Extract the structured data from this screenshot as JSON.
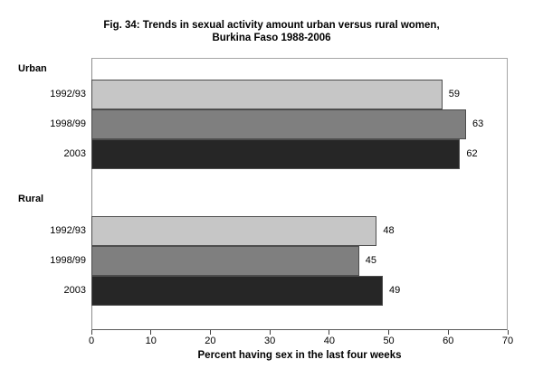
{
  "chart_data": {
    "type": "bar",
    "orientation": "horizontal",
    "title": "Fig. 34: Trends in sexual activity amount urban versus rural women, Burkina Faso 1988-2006",
    "title_lines": [
      "Fig. 34:  Trends in sexual activity amount urban versus rural women,",
      "Burkina Faso 1988-2006"
    ],
    "xlabel": "Percent having sex in the last four weeks",
    "xlim": [
      0,
      70
    ],
    "xticks": [
      0,
      10,
      20,
      30,
      40,
      50,
      60,
      70
    ],
    "grid": false,
    "legend": "none",
    "series_colors": [
      "#c6c6c6",
      "#7f7f7f",
      "#262626"
    ],
    "bar_border_color": "#4d4d4d",
    "groups": [
      {
        "label": "Urban",
        "bars": [
          {
            "category": "1992/93",
            "value": 59
          },
          {
            "category": "1998/99",
            "value": 63
          },
          {
            "category": "2003",
            "value": 62
          }
        ]
      },
      {
        "label": "Rural",
        "bars": [
          {
            "category": "1992/93",
            "value": 48
          },
          {
            "category": "1998/99",
            "value": 45
          },
          {
            "category": "2003",
            "value": 49
          }
        ]
      }
    ]
  }
}
